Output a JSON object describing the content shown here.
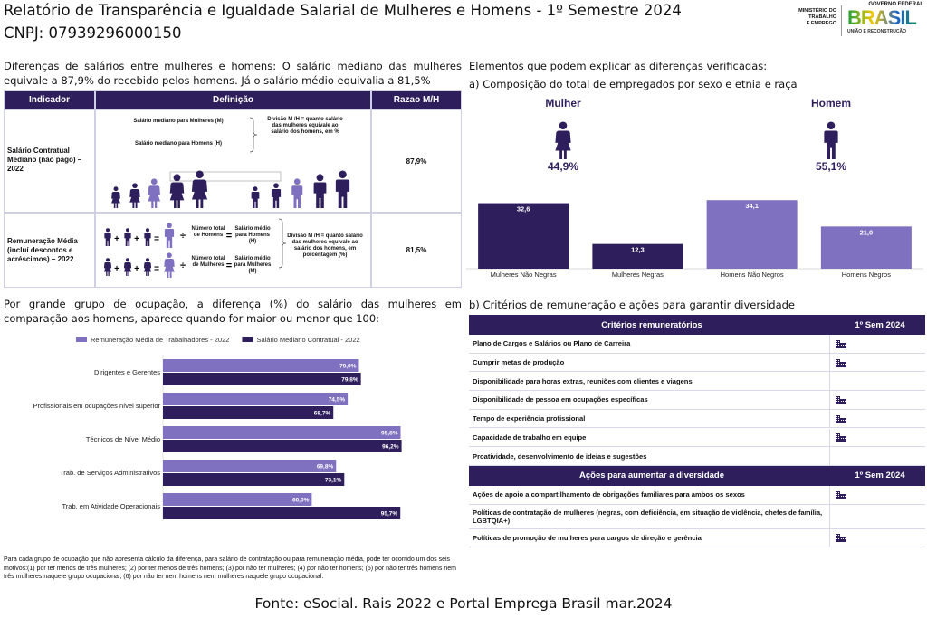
{
  "header": {
    "title": "Relatório de Transparência e Igualdade Salarial de Mulheres e Homens - 1º Semestre 2024",
    "cnpj": "CNPJ: 07939296000150",
    "ministry": [
      "MINISTÉRIO DO",
      "TRABALHO",
      "E EMPREGO"
    ],
    "gov": "GOVERNO FEDERAL",
    "brasil": "BRASIL",
    "slogan": "UNIÃO E RECONSTRUÇÃO"
  },
  "intro": "Diferenças de salários entre mulheres e homens: O salário mediano das mulheres equivale a 87,9% do recebido pelos homens. Já o salário médio equivalia a 81,5%",
  "operators": {
    "plus": "+",
    "equals": "=",
    "divide": "÷"
  },
  "salary_table": {
    "headers": [
      "Indicador",
      "Definição",
      "Razao M/H"
    ],
    "rows": [
      {
        "indicator": "Salário Contratual Mediano (não pago) – 2022",
        "ratio": "87,9%",
        "definition": {
          "women": "Salário mediano para Mulheres (M)",
          "men": "Salário mediano para Homens (H)",
          "note": "Divisão M /H = quanto salário das mulheres equivale ao salário dos homens, em %"
        }
      },
      {
        "indicator": "Remuneração Média (incluí descontos e acréscimos) – 2022",
        "ratio": "81,5%",
        "definition": {
          "men_count": "Número total de Homens",
          "men_salary": "Salário médio para Homens (H)",
          "women_count": "Número total de Mulheres",
          "women_salary": "Salário médio para Mulheres (M)",
          "note": "Divisão M /H = quanto salário das mulheres equivale ao salário dos homens, em porcentagem (%)"
        }
      }
    ]
  },
  "right_heading": "Elementos que podem explicar as diferenças verificadas:",
  "genders": [
    {
      "label": "Mulher",
      "share": "44,9%"
    },
    {
      "label": "Homem",
      "share": "55,1%"
    }
  ],
  "chart_data": [
    {
      "type": "bar",
      "title": "a) Composição do total de empregados por sexo e etnia e raça",
      "categories": [
        "Mulheres Não Negras",
        "Mulheres Negras",
        "Homens Não Negros",
        "Homens Negros"
      ],
      "values": [
        32.6,
        12.3,
        34.1,
        21.0
      ],
      "value_labels": [
        "32,6",
        "12,3",
        "34,1",
        "21,0"
      ],
      "colors": [
        "#2e1f5c",
        "#2e1f5c",
        "#8070c0",
        "#8070c0"
      ],
      "ylim": [
        0,
        36
      ]
    },
    {
      "type": "hbar",
      "title": "Por grande grupo de ocupação, a diferença (%) do salário das mulheres em comparação aos homens, aparece quando for maior ou menor que 100:",
      "categories": [
        "Dirigentes e Gerentes",
        "Profissionais em ocupações nível superior",
        "Técnicos de Nível Médio",
        "Trab. de Serviços Administrativos",
        "Trab. em Atividade Operacionais"
      ],
      "series": [
        {
          "name": "Remuneração Média de Trabalhadores - 2022",
          "color": "#8070c0",
          "values": [
            79.0,
            74.5,
            95.8,
            69.8,
            60.0
          ],
          "value_labels": [
            "79,0%",
            "74,5%",
            "95,8%",
            "69,8%",
            "60,0%"
          ]
        },
        {
          "name": "Salário Mediano Contratual - 2022",
          "color": "#2e1f5c",
          "values": [
            79.8,
            68.7,
            96.2,
            73.1,
            95.7
          ],
          "value_labels": [
            "79,8%",
            "68,7%",
            "96,2%",
            "73,1%",
            "95,7%"
          ]
        }
      ],
      "xlim": [
        0,
        100
      ],
      "legend": "top"
    }
  ],
  "criteria_heading": "b) Critérios de remuneração e ações para garantir diversidade",
  "criteria_table": {
    "sections": [
      {
        "headers": [
          "Critérios remuneratórios",
          "1º Sem 2024"
        ],
        "rows": [
          {
            "text": "Plano de Cargos e Salários ou Plano de Carreira",
            "marked": true
          },
          {
            "text": "Cumprir metas de produção",
            "marked": true
          },
          {
            "text": "Disponibilidade para horas extras, reuniões com clientes e viagens",
            "marked": false
          },
          {
            "text": "Disponibilidade de pessoa em ocupações específicas",
            "marked": true
          },
          {
            "text": "Tempo de experiência profissional",
            "marked": true
          },
          {
            "text": "Capacidade de trabalho em equipe",
            "marked": true
          },
          {
            "text": "Proatividade, desenvolvimento de ideias e sugestões",
            "marked": false
          }
        ]
      },
      {
        "headers": [
          "Ações para aumentar a diversidade",
          "1º Sem 2024"
        ],
        "rows": [
          {
            "text": "Ações de apoio a compartilhamento de obrigações familiares para ambos os sexos",
            "marked": true
          },
          {
            "text": "Políticas de contratação de mulheres (negras, com deficiência, em situação de violência, chefes de família, LGBTQIA+)",
            "marked": false
          },
          {
            "text": "Políticas de promoção de mulheres para cargos de direção e gerência",
            "marked": true
          }
        ]
      }
    ]
  },
  "footnote": "Para cada grupo de ocupação que não apresenta cálculo da diferença, para salário de contratação ou para remuneração média, pode ter ocorrido um dos seis motivos:(1) por ter menos de três mulheres; (2) por ter menos de três homens; (3) por não ter mulheres; (4) por não ter homens; (5) por não ter três homens nem três mulheres naquele grupo ocupacional; (6) por não ter nem homens nem mulheres naquele grupo ocupacional.",
  "source": "Fonte: eSocial. Rais 2022 e Portal Emprega Brasil mar.2024"
}
